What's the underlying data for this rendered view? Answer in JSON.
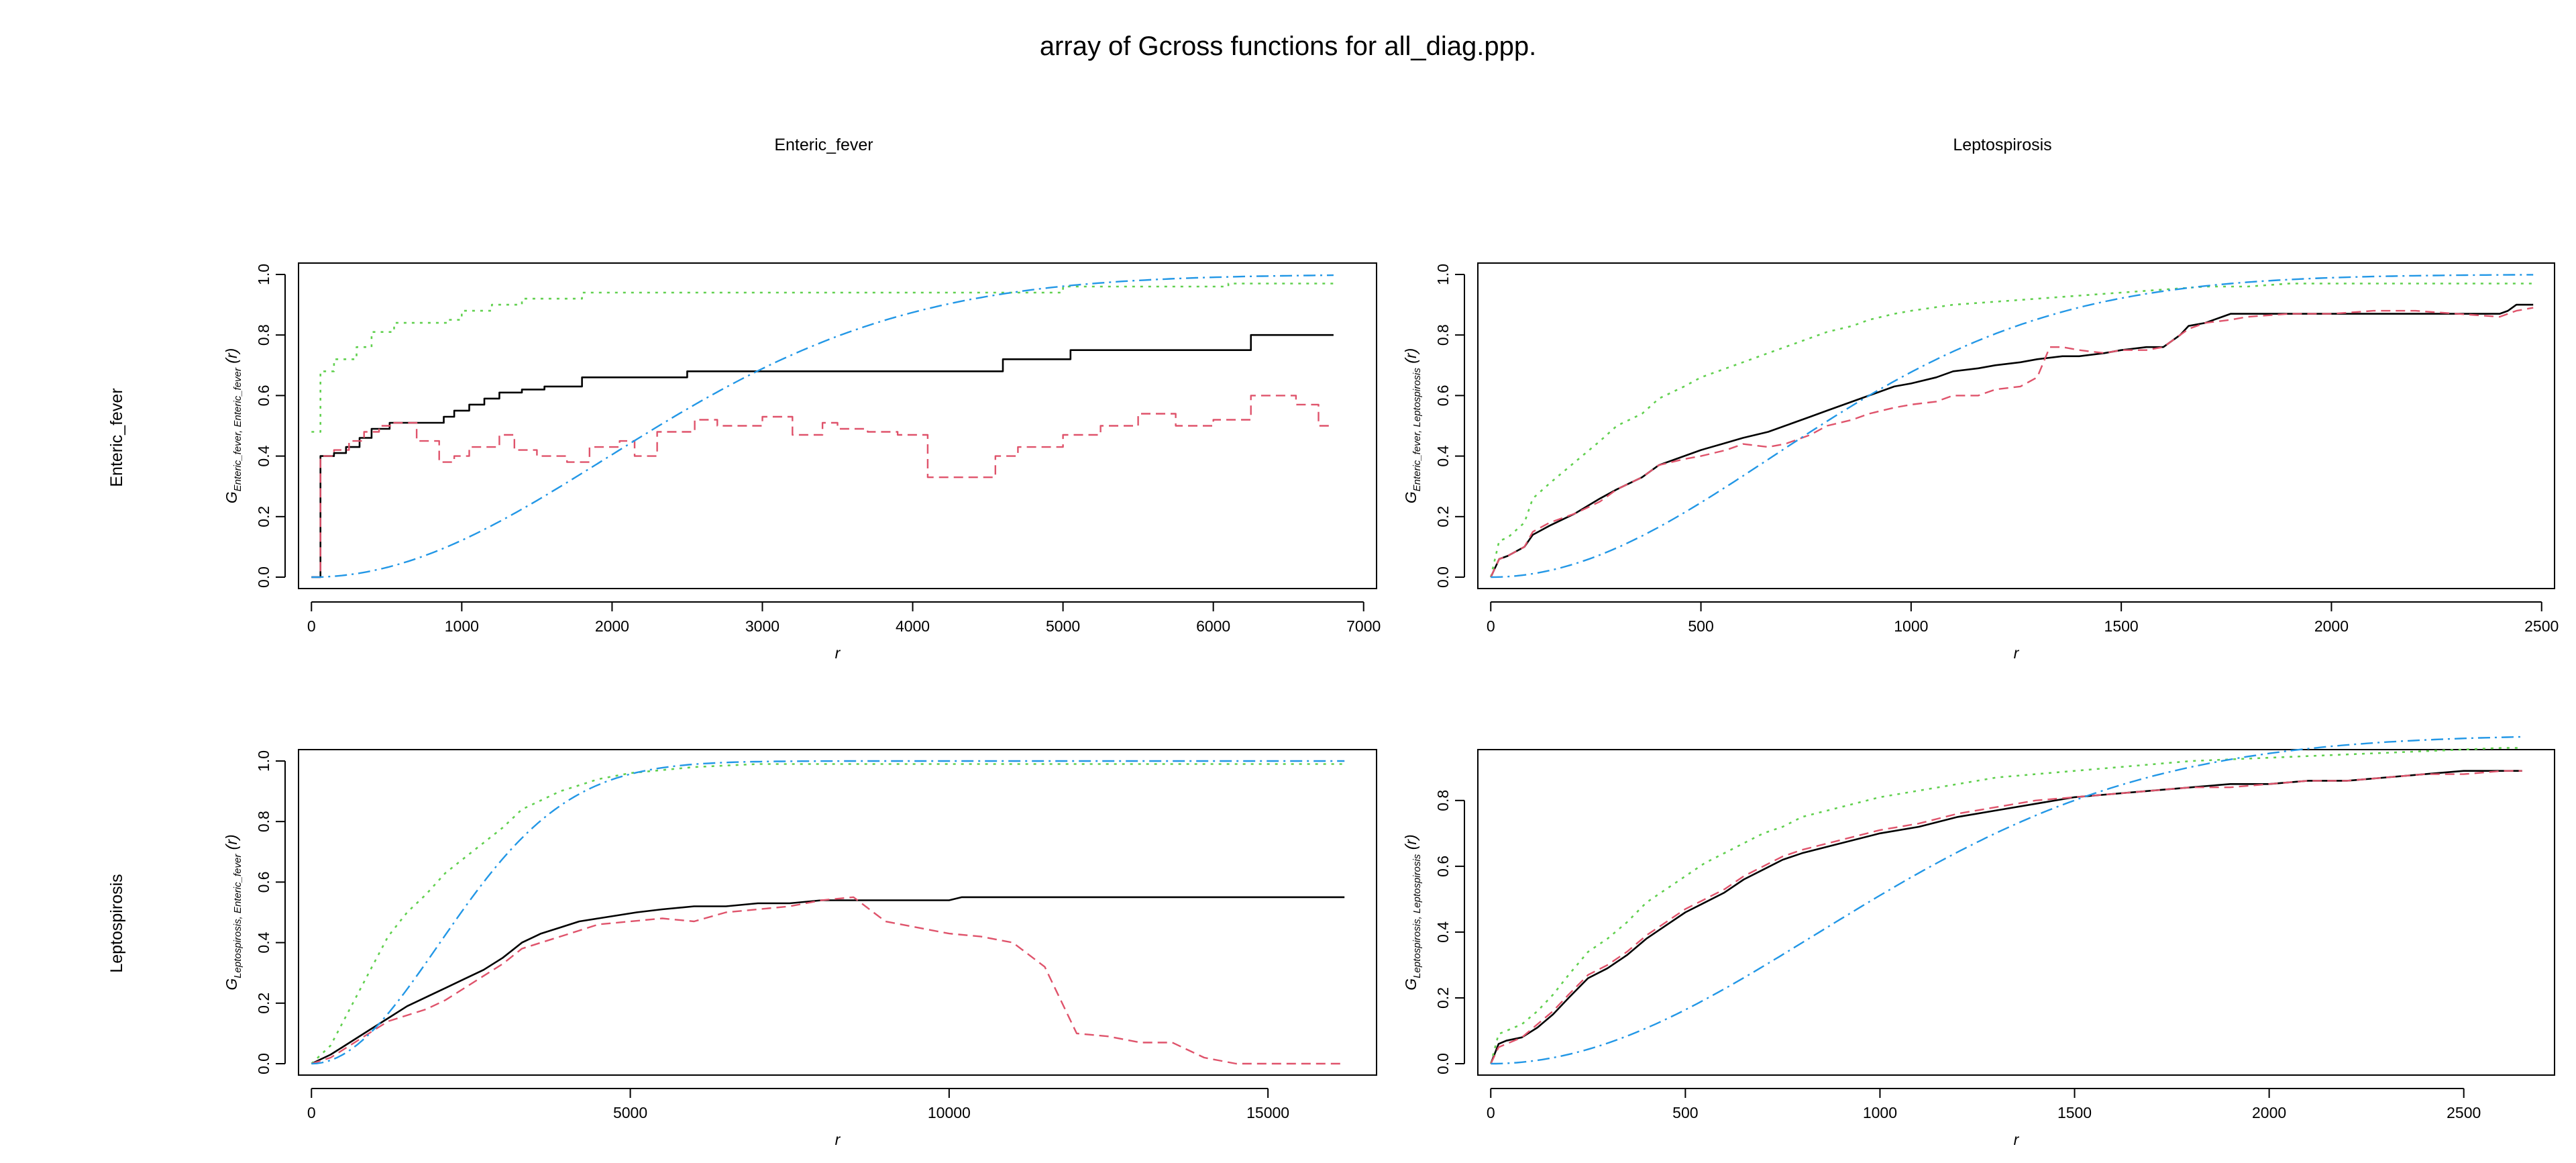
{
  "title": "array of Gcross functions for all_diag.ppp.",
  "col_headers": [
    "Enteric_fever",
    "Leptospirosis"
  ],
  "row_headers": [
    "Enteric_fever",
    "Leptospirosis"
  ],
  "colors": {
    "obs": "#000000",
    "km": "#000000",
    "han": "#DF536B",
    "theo": "#2297E6",
    "rs": "#61D04F"
  },
  "chart_data": [
    {
      "type": "line",
      "panel": "Enteric_fever vs Enteric_fever",
      "xlabel": "r",
      "ylabel": {
        "base": "G",
        "sub": "Enteric_fever, Enteric_fever",
        "suffix": "(r)"
      },
      "xlim": [
        0,
        7000
      ],
      "ylim": [
        0,
        1
      ],
      "xticks": [
        0,
        1000,
        2000,
        3000,
        4000,
        5000,
        6000,
        7000
      ],
      "yticks": [
        0.0,
        0.2,
        0.4,
        0.6,
        0.8,
        1.0
      ],
      "yticklabels": [
        "0.0",
        "0.2",
        "0.4",
        "0.6",
        "0.8",
        "1.0"
      ],
      "grid": false,
      "series": [
        {
          "style": "km",
          "step": true,
          "x": [
            0,
            60,
            150,
            230,
            320,
            400,
            520,
            880,
            950,
            1050,
            1150,
            1250,
            1400,
            1550,
            1800,
            2500,
            4600,
            5050,
            6250,
            6800
          ],
          "y": [
            0,
            0.4,
            0.41,
            0.43,
            0.46,
            0.49,
            0.51,
            0.53,
            0.55,
            0.57,
            0.59,
            0.61,
            0.62,
            0.63,
            0.66,
            0.68,
            0.72,
            0.75,
            0.8,
            0.8
          ]
        },
        {
          "style": "rs",
          "step": true,
          "x": [
            0,
            60,
            150,
            300,
            400,
            550,
            900,
            1000,
            1200,
            1400,
            1800,
            2500,
            5000,
            6100,
            6800
          ],
          "y": [
            0.48,
            0.68,
            0.72,
            0.76,
            0.81,
            0.84,
            0.85,
            0.88,
            0.9,
            0.92,
            0.94,
            0.94,
            0.96,
            0.97,
            0.97
          ]
        },
        {
          "style": "han",
          "step": true,
          "x": [
            0,
            60,
            150,
            250,
            350,
            450,
            550,
            700,
            850,
            950,
            1050,
            1250,
            1350,
            1500,
            1700,
            1850,
            2050,
            2150,
            2300,
            2550,
            2700,
            3000,
            3200,
            3400,
            3500,
            3700,
            3900,
            4100,
            4550,
            4700,
            5000,
            5250,
            5500,
            5750,
            6000,
            6250,
            6550,
            6700,
            6800
          ],
          "y": [
            0,
            0.4,
            0.42,
            0.45,
            0.48,
            0.5,
            0.51,
            0.45,
            0.38,
            0.4,
            0.43,
            0.47,
            0.42,
            0.4,
            0.38,
            0.43,
            0.45,
            0.4,
            0.48,
            0.52,
            0.5,
            0.53,
            0.47,
            0.51,
            0.49,
            0.48,
            0.47,
            0.33,
            0.4,
            0.43,
            0.47,
            0.5,
            0.54,
            0.5,
            0.52,
            0.6,
            0.57,
            0.5,
            0.5
          ]
        },
        {
          "style": "theo",
          "kind": "poisson",
          "lambda": 4.13e-08,
          "xmax": 6800
        }
      ]
    },
    {
      "type": "line",
      "panel": "Enteric_fever vs Leptospirosis",
      "xlabel": "r",
      "ylabel": {
        "base": "G",
        "sub": "Enteric_fever, Leptospirosis",
        "suffix": "(r)"
      },
      "xlim": [
        0,
        2500
      ],
      "ylim": [
        0,
        1
      ],
      "xticks": [
        0,
        500,
        1000,
        1500,
        2000,
        2500
      ],
      "yticks": [
        0.0,
        0.2,
        0.4,
        0.6,
        0.8,
        1.0
      ],
      "yticklabels": [
        "0.0",
        "0.2",
        "0.4",
        "0.6",
        "0.8",
        "1.0"
      ],
      "grid": false,
      "series": [
        {
          "style": "km",
          "x": [
            0,
            20,
            40,
            80,
            100,
            140,
            200,
            260,
            300,
            360,
            400,
            460,
            500,
            550,
            600,
            660,
            700,
            760,
            800,
            860,
            900,
            960,
            1000,
            1060,
            1100,
            1160,
            1200,
            1260,
            1300,
            1360,
            1400,
            1460,
            1500,
            1560,
            1600,
            1640,
            1660,
            1700,
            1740,
            1760,
            1800,
            1900,
            2000,
            2100,
            2200,
            2300,
            2400,
            2420,
            2440,
            2480
          ],
          "y": [
            0,
            0.06,
            0.07,
            0.1,
            0.14,
            0.17,
            0.21,
            0.26,
            0.29,
            0.33,
            0.37,
            0.4,
            0.42,
            0.44,
            0.46,
            0.48,
            0.5,
            0.53,
            0.55,
            0.58,
            0.6,
            0.63,
            0.64,
            0.66,
            0.68,
            0.69,
            0.7,
            0.71,
            0.72,
            0.73,
            0.73,
            0.74,
            0.75,
            0.76,
            0.76,
            0.8,
            0.83,
            0.84,
            0.86,
            0.87,
            0.87,
            0.87,
            0.87,
            0.87,
            0.87,
            0.87,
            0.87,
            0.88,
            0.9,
            0.9
          ]
        },
        {
          "style": "rs",
          "x": [
            0,
            20,
            40,
            80,
            100,
            140,
            200,
            260,
            300,
            360,
            400,
            460,
            500,
            560,
            600,
            660,
            700,
            760,
            800,
            860,
            900,
            960,
            1000,
            1100,
            1200,
            1300,
            1400,
            1500,
            1600,
            1700,
            1800,
            1900,
            2000,
            2200,
            2400,
            2480
          ],
          "y": [
            0,
            0.12,
            0.13,
            0.18,
            0.26,
            0.31,
            0.38,
            0.45,
            0.5,
            0.54,
            0.59,
            0.63,
            0.66,
            0.69,
            0.71,
            0.74,
            0.76,
            0.79,
            0.81,
            0.83,
            0.85,
            0.87,
            0.88,
            0.9,
            0.91,
            0.92,
            0.93,
            0.94,
            0.95,
            0.96,
            0.96,
            0.97,
            0.97,
            0.97,
            0.97,
            0.97
          ]
        },
        {
          "style": "han",
          "x": [
            0,
            20,
            40,
            80,
            100,
            140,
            200,
            260,
            300,
            360,
            400,
            460,
            500,
            560,
            600,
            660,
            700,
            760,
            800,
            860,
            900,
            960,
            1000,
            1060,
            1100,
            1160,
            1200,
            1260,
            1300,
            1330,
            1360,
            1400,
            1460,
            1500,
            1560,
            1600,
            1660,
            1700,
            1760,
            1800,
            1900,
            2000,
            2100,
            2200,
            2300,
            2400,
            2440,
            2480
          ],
          "y": [
            0,
            0.06,
            0.07,
            0.1,
            0.15,
            0.18,
            0.21,
            0.25,
            0.29,
            0.33,
            0.37,
            0.39,
            0.4,
            0.42,
            0.44,
            0.43,
            0.44,
            0.47,
            0.5,
            0.52,
            0.54,
            0.56,
            0.57,
            0.58,
            0.6,
            0.6,
            0.62,
            0.63,
            0.66,
            0.76,
            0.76,
            0.75,
            0.74,
            0.75,
            0.75,
            0.76,
            0.82,
            0.84,
            0.85,
            0.86,
            0.87,
            0.87,
            0.88,
            0.88,
            0.87,
            0.86,
            0.88,
            0.89
          ]
        },
        {
          "style": "theo",
          "kind": "poisson",
          "lambda": 3.6e-07,
          "xmax": 2480
        }
      ]
    },
    {
      "type": "line",
      "panel": "Leptospirosis vs Enteric_fever",
      "xlabel": "r",
      "ylabel": {
        "base": "G",
        "sub": "Leptospirosis, Enteric_fever",
        "suffix": "(r)"
      },
      "xlim": [
        0,
        16500
      ],
      "ylim": [
        0,
        1
      ],
      "xticks": [
        0,
        5000,
        10000,
        15000
      ],
      "yticks": [
        0.0,
        0.2,
        0.4,
        0.6,
        0.8,
        1.0
      ],
      "yticklabels": [
        "0.0",
        "0.2",
        "0.4",
        "0.6",
        "0.8",
        "1.0"
      ],
      "grid": false,
      "series": [
        {
          "style": "km",
          "x": [
            0,
            300,
            600,
            900,
            1200,
            1500,
            1800,
            2100,
            2400,
            2700,
            3000,
            3300,
            3600,
            3900,
            4200,
            4500,
            4800,
            5100,
            5500,
            6000,
            6500,
            7000,
            7500,
            8000,
            8500,
            9000,
            9500,
            10000,
            10200,
            12000,
            14000,
            16200
          ],
          "y": [
            0,
            0.03,
            0.07,
            0.11,
            0.15,
            0.19,
            0.22,
            0.25,
            0.28,
            0.31,
            0.35,
            0.4,
            0.43,
            0.45,
            0.47,
            0.48,
            0.49,
            0.5,
            0.51,
            0.52,
            0.52,
            0.53,
            0.53,
            0.54,
            0.54,
            0.54,
            0.54,
            0.54,
            0.55,
            0.55,
            0.55,
            0.55
          ]
        },
        {
          "style": "rs",
          "x": [
            0,
            300,
            600,
            900,
            1200,
            1500,
            1800,
            2100,
            2400,
            2700,
            3000,
            3300,
            3600,
            3900,
            4200,
            4500,
            5000,
            5500,
            6000,
            7000,
            8000,
            9000,
            10000,
            12000,
            14000,
            16200
          ],
          "y": [
            0,
            0.06,
            0.18,
            0.3,
            0.42,
            0.5,
            0.56,
            0.63,
            0.68,
            0.73,
            0.78,
            0.84,
            0.87,
            0.9,
            0.92,
            0.94,
            0.96,
            0.97,
            0.98,
            0.99,
            0.99,
            0.99,
            0.99,
            0.99,
            0.99,
            0.99
          ]
        },
        {
          "style": "han",
          "x": [
            0,
            300,
            600,
            900,
            1200,
            1500,
            1800,
            2100,
            2400,
            2700,
            3000,
            3300,
            3600,
            3900,
            4200,
            4500,
            5000,
            5500,
            6000,
            6500,
            7000,
            7500,
            8000,
            8500,
            9000,
            9500,
            10000,
            10500,
            11000,
            11500,
            12000,
            12500,
            13000,
            13500,
            14000,
            14500,
            16200
          ],
          "y": [
            0,
            0.02,
            0.06,
            0.1,
            0.14,
            0.16,
            0.18,
            0.21,
            0.25,
            0.29,
            0.33,
            0.38,
            0.4,
            0.42,
            0.44,
            0.46,
            0.47,
            0.48,
            0.47,
            0.5,
            0.51,
            0.52,
            0.54,
            0.55,
            0.47,
            0.45,
            0.43,
            0.42,
            0.4,
            0.32,
            0.1,
            0.09,
            0.07,
            0.07,
            0.02,
            0.0,
            0.0
          ]
        },
        {
          "style": "theo",
          "kind": "poisson",
          "lambda": 4e-08,
          "xmax": 16200
        }
      ]
    },
    {
      "type": "line",
      "panel": "Leptospirosis vs Leptospirosis",
      "xlabel": "r",
      "ylabel": {
        "base": "G",
        "sub": "Leptospirosis, Leptospirosis",
        "suffix": "(r)"
      },
      "xlim": [
        0,
        2700
      ],
      "ylim": [
        0,
        0.92
      ],
      "xticks": [
        0,
        500,
        1000,
        1500,
        2000,
        2500
      ],
      "yticks": [
        0.0,
        0.2,
        0.4,
        0.6,
        0.8
      ],
      "yticklabels": [
        "0.0",
        "0.2",
        "0.4",
        "0.6",
        "0.8"
      ],
      "grid": false,
      "series": [
        {
          "style": "km",
          "x": [
            0,
            20,
            40,
            80,
            120,
            160,
            200,
            250,
            300,
            350,
            400,
            450,
            500,
            550,
            600,
            650,
            700,
            750,
            800,
            900,
            1000,
            1100,
            1200,
            1300,
            1400,
            1500,
            1600,
            1700,
            1800,
            1900,
            2000,
            2100,
            2200,
            2300,
            2400,
            2500,
            2600,
            2650
          ],
          "y": [
            0,
            0.06,
            0.07,
            0.08,
            0.11,
            0.15,
            0.2,
            0.26,
            0.29,
            0.33,
            0.38,
            0.42,
            0.46,
            0.49,
            0.52,
            0.56,
            0.59,
            0.62,
            0.64,
            0.67,
            0.7,
            0.72,
            0.75,
            0.77,
            0.79,
            0.81,
            0.82,
            0.83,
            0.84,
            0.85,
            0.85,
            0.86,
            0.86,
            0.87,
            0.88,
            0.89,
            0.89,
            0.89
          ]
        },
        {
          "style": "rs",
          "x": [
            0,
            20,
            40,
            80,
            120,
            160,
            200,
            250,
            300,
            350,
            400,
            450,
            500,
            550,
            600,
            650,
            700,
            750,
            800,
            900,
            1000,
            1100,
            1200,
            1300,
            1400,
            1500,
            1600,
            1800,
            2000,
            2200,
            2400,
            2600,
            2650
          ],
          "y": [
            0,
            0.09,
            0.1,
            0.12,
            0.16,
            0.21,
            0.27,
            0.34,
            0.38,
            0.43,
            0.49,
            0.53,
            0.57,
            0.61,
            0.64,
            0.67,
            0.7,
            0.72,
            0.75,
            0.78,
            0.81,
            0.83,
            0.85,
            0.87,
            0.88,
            0.89,
            0.9,
            0.92,
            0.93,
            0.94,
            0.95,
            0.96,
            0.96
          ]
        },
        {
          "style": "han",
          "x": [
            0,
            20,
            40,
            80,
            120,
            160,
            200,
            250,
            300,
            350,
            400,
            450,
            500,
            550,
            600,
            650,
            700,
            750,
            800,
            900,
            1000,
            1100,
            1200,
            1300,
            1400,
            1500,
            1600,
            1700,
            1800,
            1900,
            2000,
            2100,
            2200,
            2300,
            2400,
            2500,
            2600,
            2650
          ],
          "y": [
            0,
            0.05,
            0.06,
            0.08,
            0.12,
            0.16,
            0.21,
            0.27,
            0.3,
            0.34,
            0.39,
            0.43,
            0.47,
            0.5,
            0.53,
            0.57,
            0.6,
            0.63,
            0.65,
            0.68,
            0.71,
            0.73,
            0.76,
            0.78,
            0.8,
            0.81,
            0.82,
            0.83,
            0.84,
            0.84,
            0.85,
            0.86,
            0.86,
            0.87,
            0.88,
            0.88,
            0.89,
            0.89
          ]
        },
        {
          "style": "theo",
          "kind": "poisson",
          "lambda": 2.28e-07,
          "xmax": 2650
        }
      ]
    }
  ]
}
